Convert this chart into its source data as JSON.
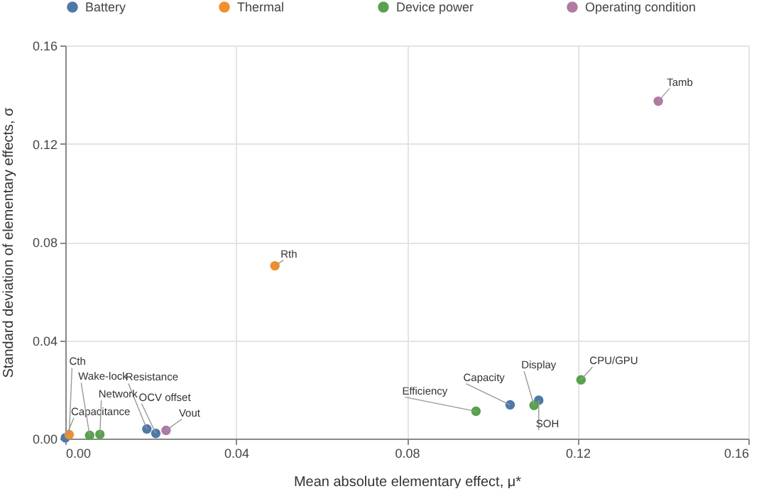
{
  "chart_data": {
    "type": "scatter",
    "xlabel": "Mean absolute elementary effect, μ*",
    "ylabel": "Standard deviation of elementary effects, σ",
    "series": [
      {
        "name": "Battery",
        "color": "#4e79a7",
        "x": [
          0.0,
          0.0191,
          0.0212,
          0.1042,
          0.1109
        ],
        "values": [
          0.0003,
          0.0039,
          0.0021,
          0.0137,
          0.0156
        ]
      },
      {
        "name": "Thermal",
        "color": "#f28e2b",
        "x": [
          0.0009,
          0.0491
        ],
        "values": [
          0.0016,
          0.0703
        ]
      },
      {
        "name": "Device power",
        "color": "#59a14f",
        "x": [
          0.0057,
          0.0081,
          0.0962,
          0.1098,
          0.1208
        ],
        "values": [
          0.0013,
          0.0017,
          0.0111,
          0.0135,
          0.0239
        ]
      },
      {
        "name": "Operating condition",
        "color": "#b07aa1",
        "x": [
          0.0236,
          0.1389
        ],
        "values": [
          0.0033,
          0.1373
        ]
      }
    ],
    "annotations": [
      {
        "text": "Capacitance",
        "x": 0.0,
        "y": 0.0003
      },
      {
        "text": "Resistance",
        "x": 0.0191,
        "y": 0.0039
      },
      {
        "text": "OCV offset",
        "x": 0.0212,
        "y": 0.0021
      },
      {
        "text": "Capacity",
        "x": 0.1042,
        "y": 0.0137
      },
      {
        "text": "SOH",
        "x": 0.1109,
        "y": 0.0156
      },
      {
        "text": "Cth",
        "x": 0.0009,
        "y": 0.0016
      },
      {
        "text": "Rth",
        "x": 0.0491,
        "y": 0.0703
      },
      {
        "text": "Wake-lock",
        "x": 0.0057,
        "y": 0.0013
      },
      {
        "text": "Network",
        "x": 0.0081,
        "y": 0.0017
      },
      {
        "text": "Efficiency",
        "x": 0.0962,
        "y": 0.0111
      },
      {
        "text": "Display",
        "x": 0.1098,
        "y": 0.0135
      },
      {
        "text": "CPU/GPU",
        "x": 0.1208,
        "y": 0.0239
      },
      {
        "text": "Vout",
        "x": 0.0236,
        "y": 0.0033
      },
      {
        "text": "Tamb",
        "x": 0.1389,
        "y": 0.1373
      }
    ],
    "xlim": [
      0,
      0.16
    ],
    "xticks": [
      {
        "value": 0,
        "label": "0.00"
      },
      0.04,
      0.08,
      0.12,
      0.16
    ],
    "ylim": [
      0,
      0.16
    ],
    "yticks": [
      {
        "value": 0,
        "label": "0.00"
      },
      0.04,
      0.08,
      0.12,
      0.16
    ],
    "grid": true,
    "legend": "top",
    "marker": "circle"
  }
}
